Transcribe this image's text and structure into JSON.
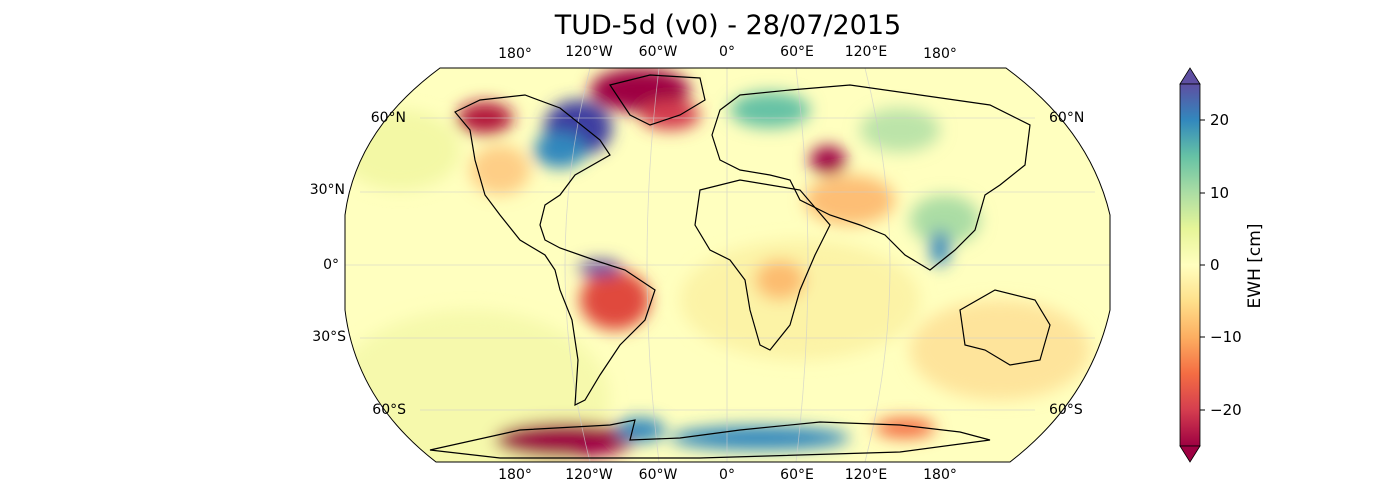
{
  "title": "TUD-5d (v0) - 28/07/2015",
  "lon_labels": [
    "180°",
    "120°W",
    "60°W",
    "0°",
    "60°E",
    "120°E",
    "180°"
  ],
  "lat_labels_left": [
    "60°N",
    "30°N",
    "0°",
    "30°S",
    "60°S"
  ],
  "lat_labels_right": [
    "60°N",
    "60°S"
  ],
  "colorbar": {
    "label": "EWH [cm]",
    "ticks": [
      "20",
      "10",
      "0",
      "−10",
      "−20"
    ],
    "range": [
      -25,
      25
    ],
    "colormap": "Spectral",
    "colors": [
      "#9e0142",
      "#d53e4f",
      "#f46d43",
      "#fdae61",
      "#fee08b",
      "#ffffbf",
      "#e6f598",
      "#abdda4",
      "#66c2a5",
      "#3288bd",
      "#5e4fa2"
    ]
  },
  "map": {
    "projection": "Robinson",
    "background": "#ffffbf"
  }
}
